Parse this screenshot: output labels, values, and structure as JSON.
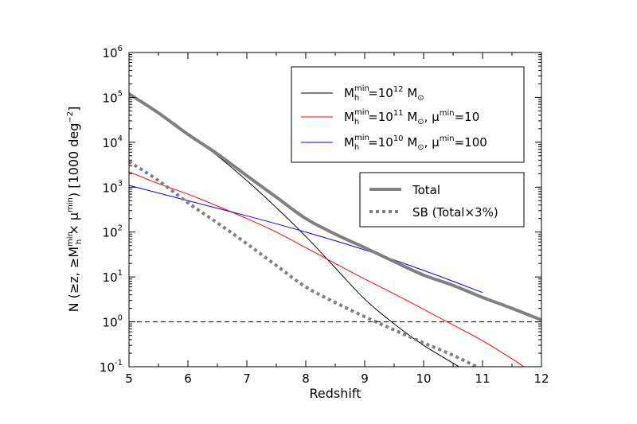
{
  "chart_data": {
    "type": "line",
    "xlabel": "Redshift",
    "ylabel_parts": [
      "N (≥z, ≥M",
      "min",
      "h",
      " × μ",
      "min",
      ") [1000 deg",
      "−2",
      "]"
    ],
    "xlim": [
      5,
      12
    ],
    "ylim": [
      0.1,
      1000000
    ],
    "yscale": "log",
    "x_ticks": [
      "5",
      "6",
      "7",
      "8",
      "9",
      "10",
      "11",
      "12"
    ],
    "y_ticks": [
      {
        "base": "10",
        "exp": "-1",
        "value": 0.1
      },
      {
        "base": "10",
        "exp": "0",
        "value": 1
      },
      {
        "base": "10",
        "exp": "1",
        "value": 10
      },
      {
        "base": "10",
        "exp": "2",
        "value": 100
      },
      {
        "base": "10",
        "exp": "3",
        "value": 1000
      },
      {
        "base": "10",
        "exp": "4",
        "value": 10000
      },
      {
        "base": "10",
        "exp": "5",
        "value": 100000
      },
      {
        "base": "10",
        "exp": "6",
        "value": 1000000
      }
    ],
    "reference_line": {
      "y": 1,
      "style": "dashed",
      "color": "#000000"
    },
    "legend1": [
      {
        "color": "#000000",
        "parts": [
          "M",
          "min",
          "h",
          "=10",
          "12",
          " M",
          "⊙",
          "",
          ""
        ]
      },
      {
        "color": "#ff0000",
        "parts": [
          "M",
          "min",
          "h",
          "=10",
          "11",
          " M",
          "⊙",
          ", μ",
          "min",
          "=10"
        ]
      },
      {
        "color": "#0000ff",
        "parts": [
          "M",
          "min",
          "h",
          "=10",
          "10",
          " M",
          "⊙",
          ", μ",
          "min",
          "=100"
        ]
      }
    ],
    "legend2": [
      {
        "label": "Total",
        "color": "#808080",
        "style": "solid"
      },
      {
        "label": "SB (Total×3%)",
        "color": "#808080",
        "style": "dotted"
      }
    ],
    "series": [
      {
        "key": "m12",
        "color": "#000000",
        "width": 1,
        "style": "solid",
        "x": [
          5,
          5.5,
          6,
          6.5,
          7,
          7.5,
          8,
          8.5,
          9,
          9.5,
          10,
          10.5,
          10.6
        ],
        "y": [
          120000,
          45000,
          15000,
          5000,
          1400,
          350,
          80,
          16,
          3.2,
          0.9,
          0.3,
          0.12,
          0.1
        ]
      },
      {
        "key": "m11",
        "color": "#ff0000",
        "width": 1,
        "style": "solid",
        "x": [
          5,
          5.5,
          6,
          6.5,
          7,
          7.5,
          8,
          8.5,
          9,
          9.5,
          10,
          10.5,
          11,
          11.5,
          11.7
        ],
        "y": [
          2200,
          1200,
          700,
          380,
          200,
          100,
          45,
          20,
          9,
          4.2,
          1.9,
          0.85,
          0.38,
          0.15,
          0.1
        ]
      },
      {
        "key": "m10",
        "color": "#0000ff",
        "width": 1,
        "style": "solid",
        "x": [
          5,
          6,
          7,
          8,
          9,
          10,
          11
        ],
        "y": [
          1100,
          500,
          230,
          100,
          40,
          14,
          4.5
        ]
      },
      {
        "key": "total",
        "color": "#808080",
        "width": 4,
        "style": "solid",
        "x": [
          5,
          5.5,
          6,
          6.5,
          7,
          7.5,
          8,
          8.5,
          9,
          9.5,
          10,
          10.5,
          11,
          11.5,
          12
        ],
        "y": [
          120000,
          45000,
          15000,
          5500,
          1800,
          600,
          200,
          90,
          45,
          22,
          11,
          6.5,
          3.5,
          2,
          1.1
        ]
      },
      {
        "key": "sb",
        "color": "#808080",
        "width": 4,
        "style": "dotted",
        "x": [
          5,
          5.5,
          6,
          6.5,
          7,
          7.5,
          8,
          8.5,
          9,
          9.5,
          10,
          10.5,
          10.9
        ],
        "y": [
          3700,
          1400,
          450,
          160,
          55,
          18,
          6,
          2.7,
          1.3,
          0.66,
          0.34,
          0.18,
          0.1
        ]
      }
    ]
  }
}
